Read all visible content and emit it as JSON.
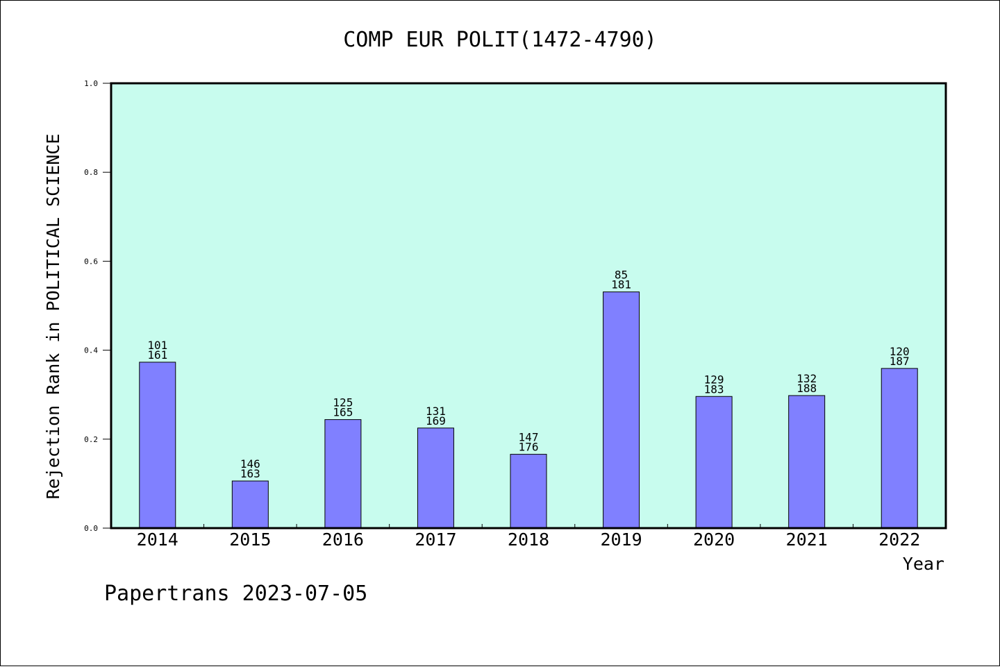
{
  "footer_text": "Papertrans 2023-07-05",
  "colors": {
    "plot_background": "#c8fcee",
    "bar_fill": "#8080ff",
    "bar_stroke": "#000000",
    "axis": "#000000"
  },
  "chart_data": {
    "type": "bar",
    "title": "COMP EUR POLIT(1472-4790)",
    "xlabel": "Year",
    "ylabel": "Rejection Rank in POLITICAL SCIENCE",
    "ylim": [
      0,
      1.0
    ],
    "y_ticks": [
      "0.0",
      "0.2",
      "0.4",
      "0.6",
      "0.8",
      "1.0"
    ],
    "grid": false,
    "categories": [
      "2014",
      "2015",
      "2016",
      "2017",
      "2018",
      "2019",
      "2020",
      "2021",
      "2022"
    ],
    "values": [
      0.373,
      0.106,
      0.244,
      0.225,
      0.166,
      0.531,
      0.296,
      0.298,
      0.359
    ],
    "label_top": [
      "101",
      "146",
      "125",
      "131",
      "147",
      "85",
      "129",
      "132",
      "120"
    ],
    "label_bottom": [
      "161",
      "163",
      "165",
      "169",
      "176",
      "181",
      "183",
      "188",
      "187"
    ]
  }
}
